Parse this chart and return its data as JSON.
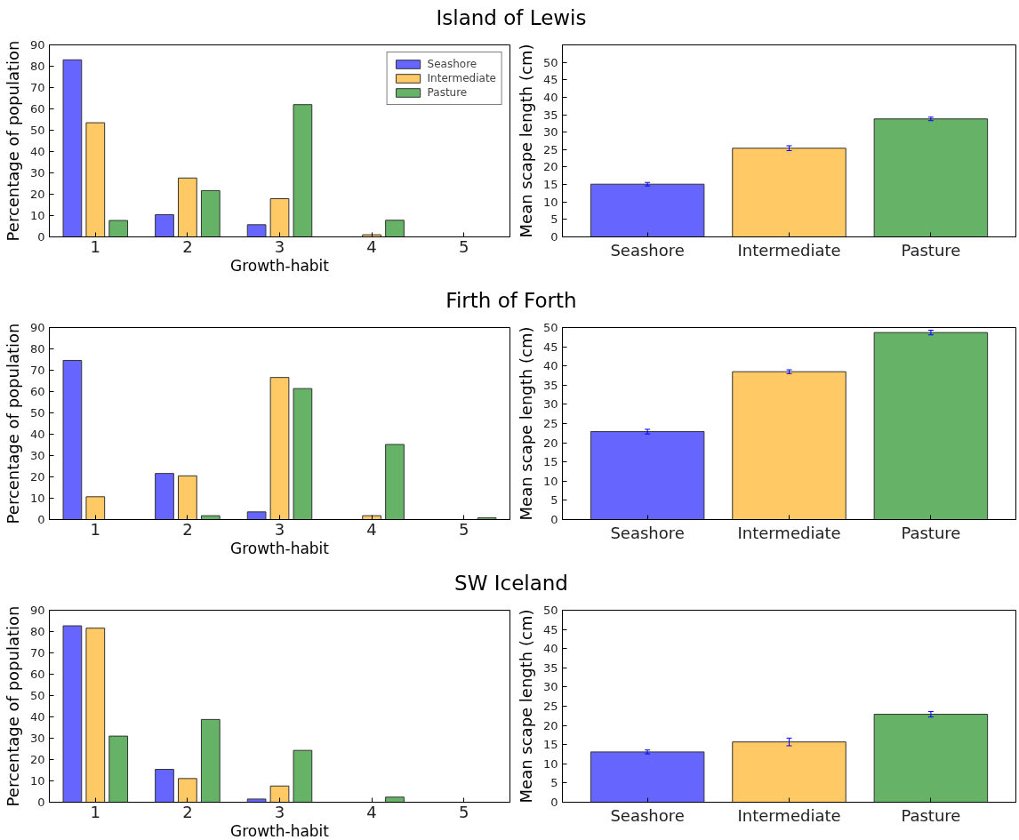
{
  "chart_data": [
    {
      "type": "bar",
      "title": "Island of Lewis",
      "xlabel": "Growth-habit",
      "ylabel": "Percentage of population",
      "categories": [
        "1",
        "2",
        "3",
        "4",
        "5"
      ],
      "series": [
        {
          "name": "Seashore",
          "color": "#6666ff",
          "values": [
            83.0,
            10.4,
            5.7,
            0,
            0
          ]
        },
        {
          "name": "Intermediate",
          "color": "#ffc966",
          "values": [
            53.5,
            27.6,
            17.9,
            1.0,
            0
          ]
        },
        {
          "name": "Pasture",
          "color": "#66b266",
          "values": [
            7.7,
            21.7,
            62.0,
            7.8,
            0
          ]
        }
      ],
      "ylim": [
        0,
        90
      ],
      "yticks": [
        0,
        10,
        20,
        30,
        40,
        50,
        60,
        70,
        80,
        90
      ],
      "legend": "top right"
    },
    {
      "type": "bar",
      "ylabel": "Mean scape length (cm)",
      "categories": [
        "Seashore",
        "Intermediate",
        "Pasture"
      ],
      "values": [
        15.1,
        25.4,
        33.8
      ],
      "colors": [
        "#6666ff",
        "#ffc966",
        "#66b266"
      ],
      "errors": [
        0.5,
        0.7,
        0.5
      ],
      "ylim": [
        0,
        55
      ],
      "yticks": [
        0,
        5,
        10,
        15,
        20,
        25,
        30,
        35,
        40,
        45,
        50
      ]
    },
    {
      "type": "bar",
      "title": "Firth of Forth",
      "xlabel": "Growth-habit",
      "ylabel": "Percentage of population",
      "categories": [
        "1",
        "2",
        "3",
        "4",
        "5"
      ],
      "series": [
        {
          "color": "#6666ff",
          "values": [
            74.6,
            21.6,
            3.6,
            0,
            0
          ]
        },
        {
          "color": "#ffc966",
          "values": [
            10.7,
            20.5,
            66.6,
            1.8,
            0
          ]
        },
        {
          "color": "#66b266",
          "values": [
            0,
            1.8,
            61.4,
            35.2,
            0.8
          ]
        }
      ],
      "ylim": [
        0,
        90
      ],
      "yticks": [
        0,
        10,
        20,
        30,
        40,
        50,
        60,
        70,
        80,
        90
      ]
    },
    {
      "type": "bar",
      "ylabel": "Mean scape length (cm)",
      "categories": [
        "Seashore",
        "Intermediate",
        "Pasture"
      ],
      "values": [
        22.9,
        38.5,
        48.7
      ],
      "colors": [
        "#6666ff",
        "#ffc966",
        "#66b266"
      ],
      "errors": [
        0.6,
        0.5,
        0.6
      ],
      "ylim": [
        0,
        50
      ],
      "yticks": [
        0,
        5,
        10,
        15,
        20,
        25,
        30,
        35,
        40,
        45,
        50
      ]
    },
    {
      "type": "bar",
      "title": "SW Iceland",
      "xlabel": "Growth-habit",
      "ylabel": "Percentage of population",
      "categories": [
        "1",
        "2",
        "3",
        "4",
        "5"
      ],
      "series": [
        {
          "color": "#6666ff",
          "values": [
            82.7,
            15.4,
            1.5,
            0,
            0
          ]
        },
        {
          "color": "#ffc966",
          "values": [
            81.6,
            11.1,
            7.6,
            0,
            0
          ]
        },
        {
          "color": "#66b266",
          "values": [
            31.0,
            38.8,
            24.3,
            2.4,
            0
          ]
        }
      ],
      "ylim": [
        0,
        90
      ],
      "yticks": [
        0,
        10,
        20,
        30,
        40,
        50,
        60,
        70,
        80,
        90
      ]
    },
    {
      "type": "bar",
      "ylabel": "Mean scape length (cm)",
      "categories": [
        "Seashore",
        "Intermediate",
        "Pasture"
      ],
      "values": [
        13.1,
        15.7,
        22.9
      ],
      "colors": [
        "#6666ff",
        "#ffc966",
        "#66b266"
      ],
      "errors": [
        0.5,
        1.0,
        0.7
      ],
      "ylim": [
        0,
        50
      ],
      "yticks": [
        0,
        5,
        10,
        15,
        20,
        25,
        30,
        35,
        40,
        45,
        50
      ]
    }
  ]
}
